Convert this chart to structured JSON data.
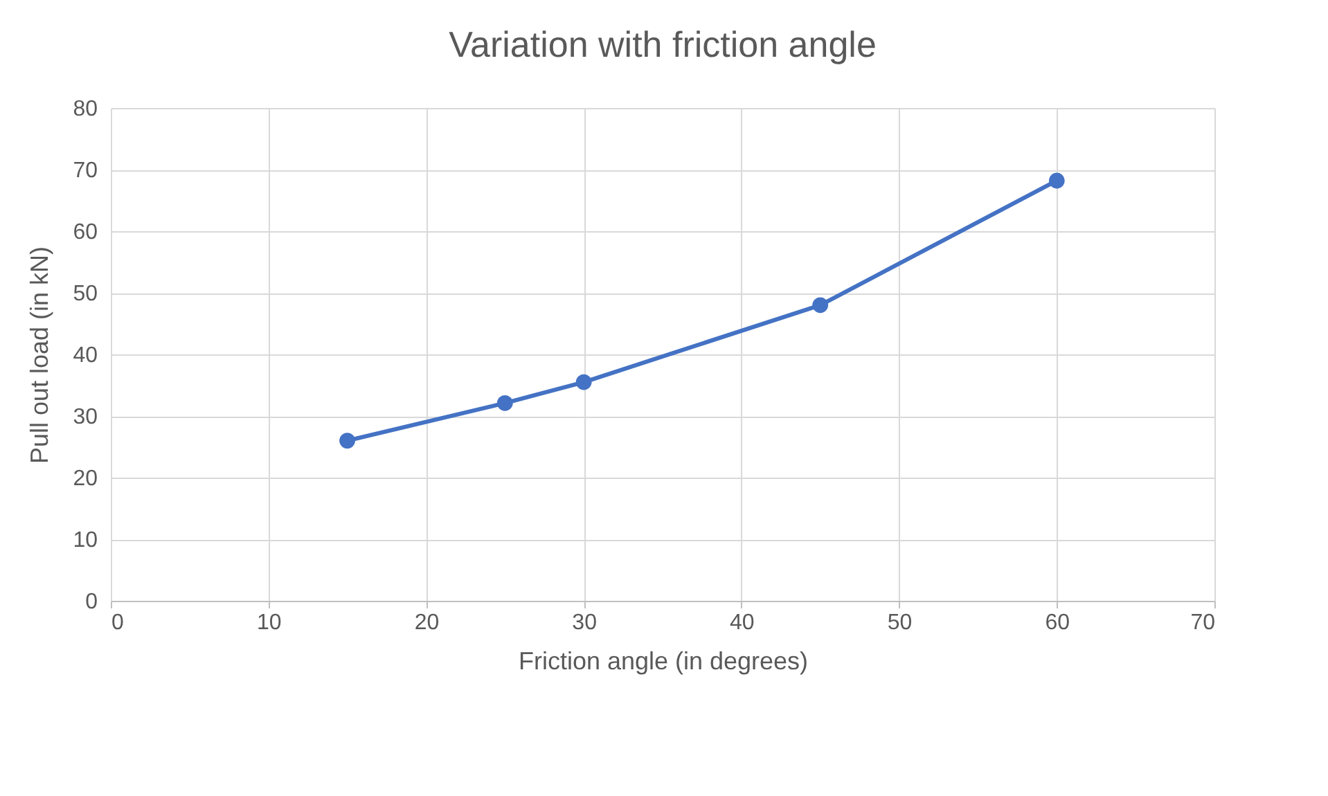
{
  "chart_data": {
    "type": "line",
    "title": "Variation with friction angle",
    "xlabel": "Friction angle (in degrees)",
    "ylabel": "Pull out load (in kN)",
    "x": [
      15,
      25,
      30,
      45,
      60
    ],
    "series": [
      {
        "color": "#4472c4",
        "values": [
          26,
          32.1,
          35.5,
          48,
          68.2
        ]
      }
    ],
    "xlim": [
      0,
      70
    ],
    "xticks": [
      0,
      10,
      20,
      30,
      40,
      50,
      60,
      70
    ],
    "ylim": [
      0,
      80
    ],
    "yticks": [
      0,
      10,
      20,
      30,
      40,
      50,
      60,
      70,
      80
    ],
    "grid": true,
    "marker": "circle",
    "line_style": "solid"
  }
}
